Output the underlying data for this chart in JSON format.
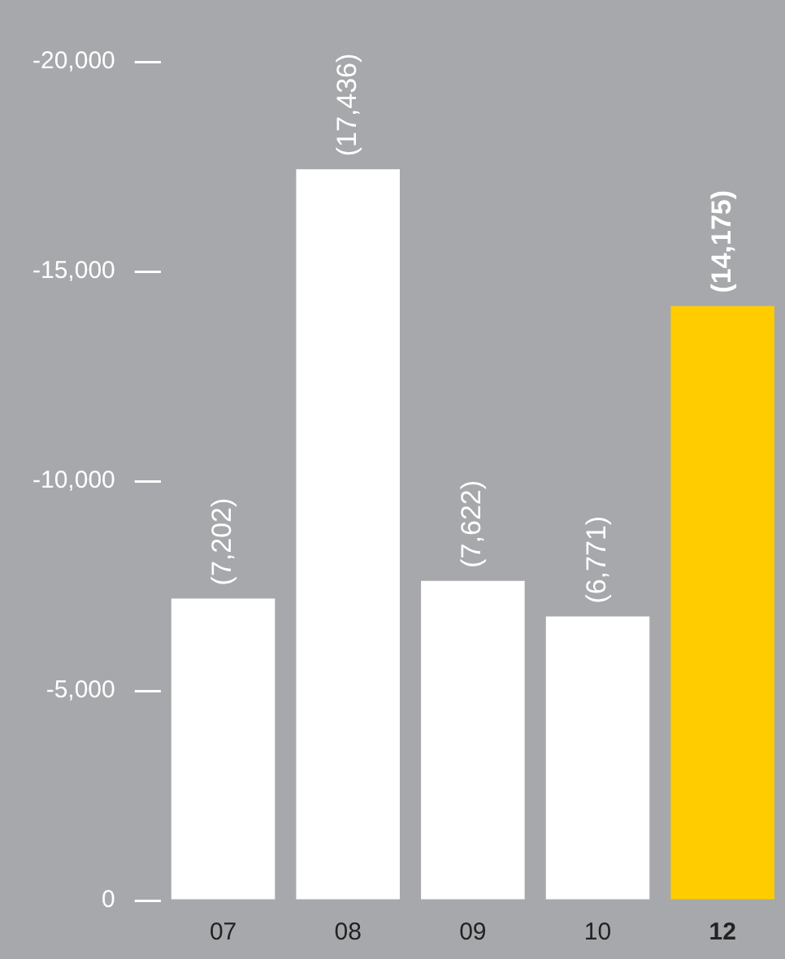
{
  "chart_data": {
    "type": "bar",
    "categories": [
      "07",
      "08",
      "09",
      "10",
      "12"
    ],
    "values": [
      -7202,
      -17436,
      -7622,
      -6771,
      -14175
    ],
    "colors": [
      "#ffffff",
      "#ffffff",
      "#ffffff",
      "#ffffff",
      "#ffcc00"
    ],
    "value_labels": [
      "(7,202)",
      "(17,436)",
      "(7,622)",
      "(6,771)",
      "(14,175)"
    ],
    "ylim": [
      0,
      -20000
    ],
    "yticks": [
      {
        "value": 0,
        "label": "0"
      },
      {
        "value": -5000,
        "label": "-5,000"
      },
      {
        "value": -10000,
        "label": "-10,000"
      },
      {
        "value": -15000,
        "label": "-15,000"
      },
      {
        "value": -20000,
        "label": "-20,000"
      }
    ],
    "grid": false,
    "legend": false
  }
}
